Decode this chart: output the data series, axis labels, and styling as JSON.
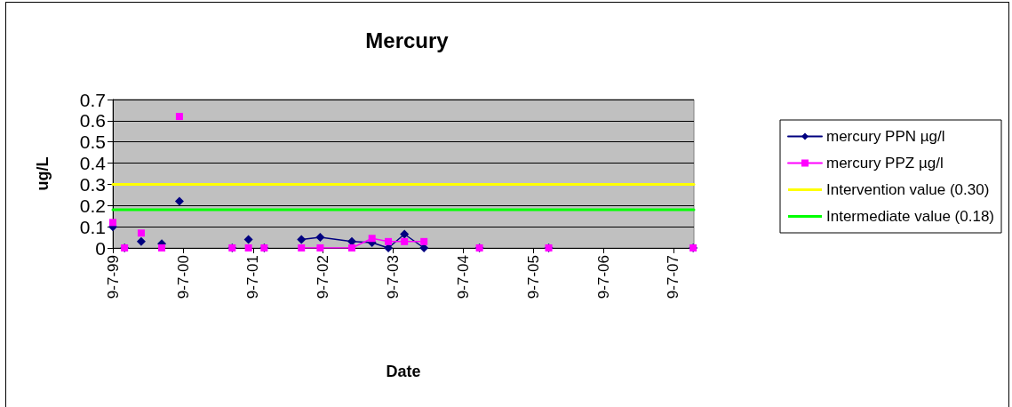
{
  "chart_data": {
    "type": "line",
    "title": "Mercury",
    "xlabel": "Date",
    "ylabel": "ug/L",
    "xlim": [
      "1999-07-09",
      "2007-10-24"
    ],
    "xticks": [
      {
        "value": "1999-07-09",
        "label": "9-7-99"
      },
      {
        "value": "2000-07-09",
        "label": "9-7-00"
      },
      {
        "value": "2001-07-09",
        "label": "9-7-01"
      },
      {
        "value": "2002-07-09",
        "label": "9-7-02"
      },
      {
        "value": "2003-07-09",
        "label": "9-7-03"
      },
      {
        "value": "2004-07-09",
        "label": "9-7-04"
      },
      {
        "value": "2005-07-09",
        "label": "9-7-05"
      },
      {
        "value": "2006-07-09",
        "label": "9-7-06"
      },
      {
        "value": "2007-07-09",
        "label": "9-7-07"
      }
    ],
    "ylim": [
      0,
      0.7
    ],
    "yticks": [
      0,
      0.1,
      0.2,
      0.3,
      0.4,
      0.5,
      0.6,
      0.7
    ],
    "grid": "y",
    "legend": "right",
    "series": [
      {
        "name": "mercury PPN µg/l",
        "color": "#000080",
        "marker": "diamond",
        "x": [
          "1999-07-09",
          "1999-08-08",
          "1999-09-08",
          "1999-10-20",
          "1999-12-04",
          "2000-02-10",
          "2000-03-20",
          "2000-05-05",
          "2000-06-20",
          "2000-11-05",
          "2001-03-22",
          "2001-05-01",
          "2001-06-15",
          "2001-08-01",
          "2001-09-05",
          "2001-12-10",
          "2002-03-18",
          "2002-06-24",
          "2002-12-06",
          "2003-03-21",
          "2003-06-14",
          "2003-09-06",
          "2003-12-17",
          "2004-05-01",
          "2004-10-01",
          "2005-04-01",
          "2005-09-27",
          "2006-10-01",
          "2007-10-20"
        ],
        "values": [
          0.1,
          null,
          0,
          null,
          0.03,
          null,
          0.02,
          null,
          0.22,
          null,
          0,
          null,
          0.04,
          null,
          0,
          null,
          0.04,
          0.05,
          0.03,
          0.025,
          0,
          0.065,
          0,
          null,
          0,
          null,
          0,
          null,
          0
        ]
      },
      {
        "name": "mercury PPZ µg/l",
        "color": "#ff00ff",
        "marker": "square",
        "x": [
          "1999-07-09",
          "1999-08-08",
          "1999-09-08",
          "1999-10-20",
          "1999-12-04",
          "2000-02-10",
          "2000-03-20",
          "2000-05-05",
          "2000-06-20",
          "2000-11-05",
          "2001-03-22",
          "2001-05-01",
          "2001-06-15",
          "2001-08-01",
          "2001-09-05",
          "2001-12-10",
          "2002-03-18",
          "2002-06-24",
          "2002-12-06",
          "2003-03-21",
          "2003-06-14",
          "2003-09-06",
          "2003-12-17",
          "2004-05-01",
          "2004-10-01",
          "2005-04-01",
          "2005-09-27",
          "2006-10-01",
          "2007-10-20"
        ],
        "values": [
          0.12,
          null,
          0,
          null,
          0.07,
          null,
          0,
          null,
          0.62,
          null,
          0,
          null,
          0,
          null,
          0,
          null,
          0,
          0,
          0,
          0.045,
          0.03,
          0.03,
          0.03,
          null,
          0,
          null,
          0,
          null,
          0
        ]
      },
      {
        "name": "Intervention value (0.30)",
        "color": "#ffff00",
        "marker": "none",
        "x": [
          "1999-07-09",
          "2007-10-24"
        ],
        "values": [
          0.3,
          0.3
        ]
      },
      {
        "name": "Intermediate value (0.18)",
        "color": "#00ff00",
        "marker": "none",
        "x": [
          "1999-07-09",
          "2007-10-24"
        ],
        "values": [
          0.18,
          0.18
        ]
      }
    ]
  }
}
